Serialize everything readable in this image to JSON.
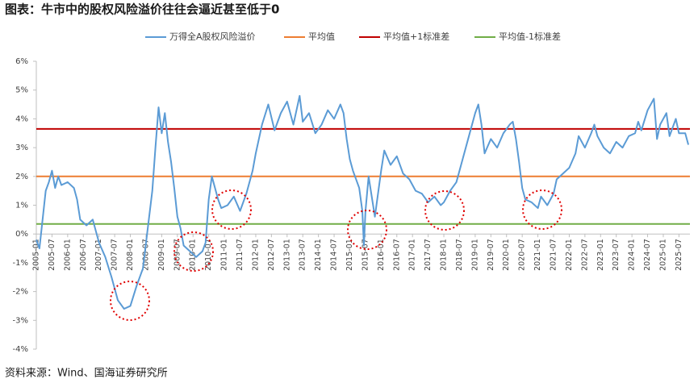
{
  "chart_data": {
    "type": "line",
    "title": "图表：牛市中的股权风险溢价往往会逼近甚至低于0",
    "source": "资料来源：Wind、国海证券研究所",
    "x": [
      2005.0,
      2005.1,
      2005.2,
      2005.3,
      2005.4,
      2005.5,
      2005.6,
      2005.7,
      2005.8,
      2006.0,
      2006.2,
      2006.3,
      2006.4,
      2006.6,
      2006.8,
      2006.9,
      2007.0,
      2007.2,
      2007.4,
      2007.6,
      2007.8,
      2008.0,
      2008.2,
      2008.4,
      2008.5,
      2008.7,
      2008.8,
      2008.9,
      2009.0,
      2009.1,
      2009.2,
      2009.3,
      2009.4,
      2009.5,
      2009.6,
      2009.7,
      2009.9,
      2010.1,
      2010.3,
      2010.4,
      2010.5,
      2010.6,
      2010.8,
      2010.9,
      2011.1,
      2011.3,
      2011.5,
      2011.7,
      2011.9,
      2012.0,
      2012.2,
      2012.4,
      2012.6,
      2012.8,
      2013.0,
      2013.2,
      2013.4,
      2013.5,
      2013.7,
      2013.9,
      2014.1,
      2014.3,
      2014.5,
      2014.7,
      2014.8,
      2014.9,
      2015.0,
      2015.1,
      2015.3,
      2015.4,
      2015.45,
      2015.5,
      2015.6,
      2015.7,
      2015.8,
      2015.9,
      2016.0,
      2016.1,
      2016.3,
      2016.5,
      2016.7,
      2016.9,
      2017.1,
      2017.3,
      2017.5,
      2017.7,
      2017.9,
      2018.0,
      2018.2,
      2018.4,
      2018.6,
      2018.8,
      2019.0,
      2019.1,
      2019.2,
      2019.3,
      2019.5,
      2019.7,
      2019.9,
      2020.1,
      2020.2,
      2020.3,
      2020.4,
      2020.5,
      2020.6,
      2020.8,
      2021.0,
      2021.1,
      2021.3,
      2021.5,
      2021.6,
      2021.8,
      2022.0,
      2022.2,
      2022.3,
      2022.5,
      2022.7,
      2022.8,
      2022.9,
      2023.1,
      2023.3,
      2023.5,
      2023.7,
      2023.9,
      2024.1,
      2024.2,
      2024.3,
      2024.5,
      2024.7,
      2024.8,
      2024.9,
      2025.1,
      2025.2,
      2025.4,
      2025.5,
      2025.7,
      2025.8
    ],
    "series": [
      {
        "name": "万得全A股权风险溢价",
        "color": "#5b9bd5",
        "values": [
          -0.2,
          -0.5,
          0.5,
          1.5,
          1.8,
          2.2,
          1.6,
          2.0,
          1.7,
          1.8,
          1.6,
          1.2,
          0.5,
          0.3,
          0.5,
          0.1,
          -0.3,
          -0.8,
          -1.5,
          -2.3,
          -2.6,
          -2.5,
          -1.8,
          -1.2,
          -0.3,
          1.5,
          3.0,
          4.4,
          3.5,
          4.2,
          3.2,
          2.5,
          1.6,
          0.6,
          0.2,
          -0.4,
          -0.6,
          -0.8,
          -0.6,
          -0.3,
          1.2,
          2.0,
          1.2,
          0.9,
          1.0,
          1.3,
          0.8,
          1.4,
          2.2,
          2.8,
          3.8,
          4.5,
          3.6,
          4.2,
          4.6,
          3.8,
          4.8,
          3.9,
          4.2,
          3.5,
          3.8,
          4.3,
          4.0,
          4.5,
          4.2,
          3.3,
          2.6,
          2.2,
          1.6,
          0.8,
          -0.4,
          0.8,
          2.0,
          1.3,
          0.6,
          1.4,
          2.2,
          2.9,
          2.4,
          2.7,
          2.1,
          1.9,
          1.5,
          1.4,
          1.1,
          1.3,
          1.0,
          1.1,
          1.5,
          1.8,
          2.6,
          3.4,
          4.2,
          4.5,
          3.8,
          2.8,
          3.3,
          3.0,
          3.5,
          3.8,
          3.9,
          3.3,
          2.5,
          1.6,
          1.2,
          1.1,
          0.9,
          1.3,
          1.0,
          1.4,
          1.9,
          2.1,
          2.3,
          2.8,
          3.4,
          3.0,
          3.5,
          3.8,
          3.4,
          3.0,
          2.8,
          3.2,
          3.0,
          3.4,
          3.5,
          3.9,
          3.6,
          4.3,
          4.7,
          3.3,
          3.8,
          4.2,
          3.4,
          4.0,
          3.5,
          3.5,
          3.1
        ]
      }
    ],
    "hlines": [
      {
        "name": "平均值",
        "color": "#ed7d31",
        "value": 2.0
      },
      {
        "name": "平均值+1标准差",
        "color": "#c00000",
        "value": 3.65
      },
      {
        "name": "平均值-1标准差",
        "color": "#70ad47",
        "value": 0.35
      }
    ],
    "xlim": [
      2005.0,
      2025.85
    ],
    "ylim": [
      -4,
      6
    ],
    "yticks": [
      {
        "value": -4,
        "label": "-4%"
      },
      {
        "value": -3,
        "label": "-3%"
      },
      {
        "value": -2,
        "label": "-2%"
      },
      {
        "value": -1,
        "label": "-1%"
      },
      {
        "value": 0,
        "label": "0%"
      },
      {
        "value": 1,
        "label": "1%"
      },
      {
        "value": 2,
        "label": "2%"
      },
      {
        "value": 3,
        "label": "3%"
      },
      {
        "value": 4,
        "label": "4%"
      },
      {
        "value": 5,
        "label": "5%"
      },
      {
        "value": 6,
        "label": "6%"
      }
    ],
    "xticks": [
      {
        "value": 2005.0,
        "label": "2005-01"
      },
      {
        "value": 2005.5,
        "label": "2005-07"
      },
      {
        "value": 2006.0,
        "label": "2006-01"
      },
      {
        "value": 2006.5,
        "label": "2006-07"
      },
      {
        "value": 2007.0,
        "label": "2007-01"
      },
      {
        "value": 2007.5,
        "label": "2007-07"
      },
      {
        "value": 2008.0,
        "label": "2008-01"
      },
      {
        "value": 2008.5,
        "label": "2008-07"
      },
      {
        "value": 2009.0,
        "label": "2009-01"
      },
      {
        "value": 2009.5,
        "label": "2009-07"
      },
      {
        "value": 2010.0,
        "label": "2010-01"
      },
      {
        "value": 2010.5,
        "label": "2010-07"
      },
      {
        "value": 2011.0,
        "label": "2011-01"
      },
      {
        "value": 2011.5,
        "label": "2011-07"
      },
      {
        "value": 2012.0,
        "label": "2012-01"
      },
      {
        "value": 2012.5,
        "label": "2012-07"
      },
      {
        "value": 2013.0,
        "label": "2013-01"
      },
      {
        "value": 2013.5,
        "label": "2013-07"
      },
      {
        "value": 2014.0,
        "label": "2014-01"
      },
      {
        "value": 2014.5,
        "label": "2014-07"
      },
      {
        "value": 2015.0,
        "label": "2015-01"
      },
      {
        "value": 2015.5,
        "label": "2015-07"
      },
      {
        "value": 2016.0,
        "label": "2016-01"
      },
      {
        "value": 2016.5,
        "label": "2016-07"
      },
      {
        "value": 2017.0,
        "label": "2017-01"
      },
      {
        "value": 2017.5,
        "label": "2017-07"
      },
      {
        "value": 2018.0,
        "label": "2018-01"
      },
      {
        "value": 2018.5,
        "label": "2018-07"
      },
      {
        "value": 2019.0,
        "label": "2019-01"
      },
      {
        "value": 2019.5,
        "label": "2019-07"
      },
      {
        "value": 2020.0,
        "label": "2020-01"
      },
      {
        "value": 2020.5,
        "label": "2020-07"
      },
      {
        "value": 2021.0,
        "label": "2021-01"
      },
      {
        "value": 2021.5,
        "label": "2021-07"
      },
      {
        "value": 2022.0,
        "label": "2022-01"
      },
      {
        "value": 2022.5,
        "label": "2022-07"
      },
      {
        "value": 2023.0,
        "label": "2023-01"
      },
      {
        "value": 2023.5,
        "label": "2023-07"
      },
      {
        "value": 2024.0,
        "label": "2024-01"
      },
      {
        "value": 2024.5,
        "label": "2024-07"
      },
      {
        "value": 2025.0,
        "label": "2025-01"
      },
      {
        "value": 2025.5,
        "label": "2025-07"
      }
    ]
  }
}
